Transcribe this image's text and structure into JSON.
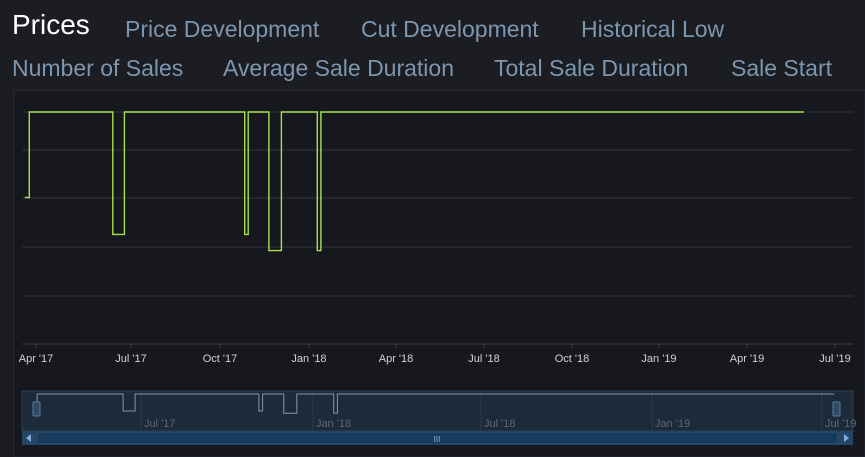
{
  "tabs": [
    {
      "label": "Prices",
      "active": true
    },
    {
      "label": "Price Development"
    },
    {
      "label": "Cut Development"
    },
    {
      "label": "Historical Low"
    },
    {
      "label": "Number of Sales"
    },
    {
      "label": "Average Sale Duration"
    },
    {
      "label": "Total Sale Duration"
    },
    {
      "label": "Sale Start"
    }
  ],
  "chart_data": {
    "type": "line",
    "title": "",
    "xlabel": "",
    "ylabel": "",
    "series_color": "#a6e04e",
    "x_ticks": [
      "Apr '17",
      "Jul '17",
      "Oct '17",
      "Jan '18",
      "Apr '18",
      "Jul '18",
      "Oct '18",
      "Jan '19",
      "Apr '19",
      "Jul '19"
    ],
    "x_range_days": [
      0,
      860
    ],
    "y_range_percent": [
      0,
      100
    ],
    "grid": true,
    "series": [
      {
        "name": "Price",
        "points": [
          [
            -8,
            63
          ],
          [
            -3,
            63
          ],
          [
            -3,
            100
          ],
          [
            90,
            100
          ],
          [
            90,
            47
          ],
          [
            103,
            47
          ],
          [
            103,
            100
          ],
          [
            237,
            100
          ],
          [
            237,
            47
          ],
          [
            241,
            47
          ],
          [
            241,
            100
          ],
          [
            243,
            100
          ],
          [
            243,
            100
          ],
          [
            264,
            100
          ],
          [
            264,
            40
          ],
          [
            278,
            40
          ],
          [
            278,
            100
          ],
          [
            318,
            100
          ],
          [
            318,
            40
          ],
          [
            322,
            40
          ],
          [
            322,
            100
          ],
          [
            860,
            100
          ]
        ]
      }
    ],
    "navigator": {
      "x_ticks": [
        "Jul '17",
        "Jan '18",
        "Jul '18",
        "Jan '19",
        "Jul '19"
      ],
      "scrollbar_grip": "III"
    }
  }
}
